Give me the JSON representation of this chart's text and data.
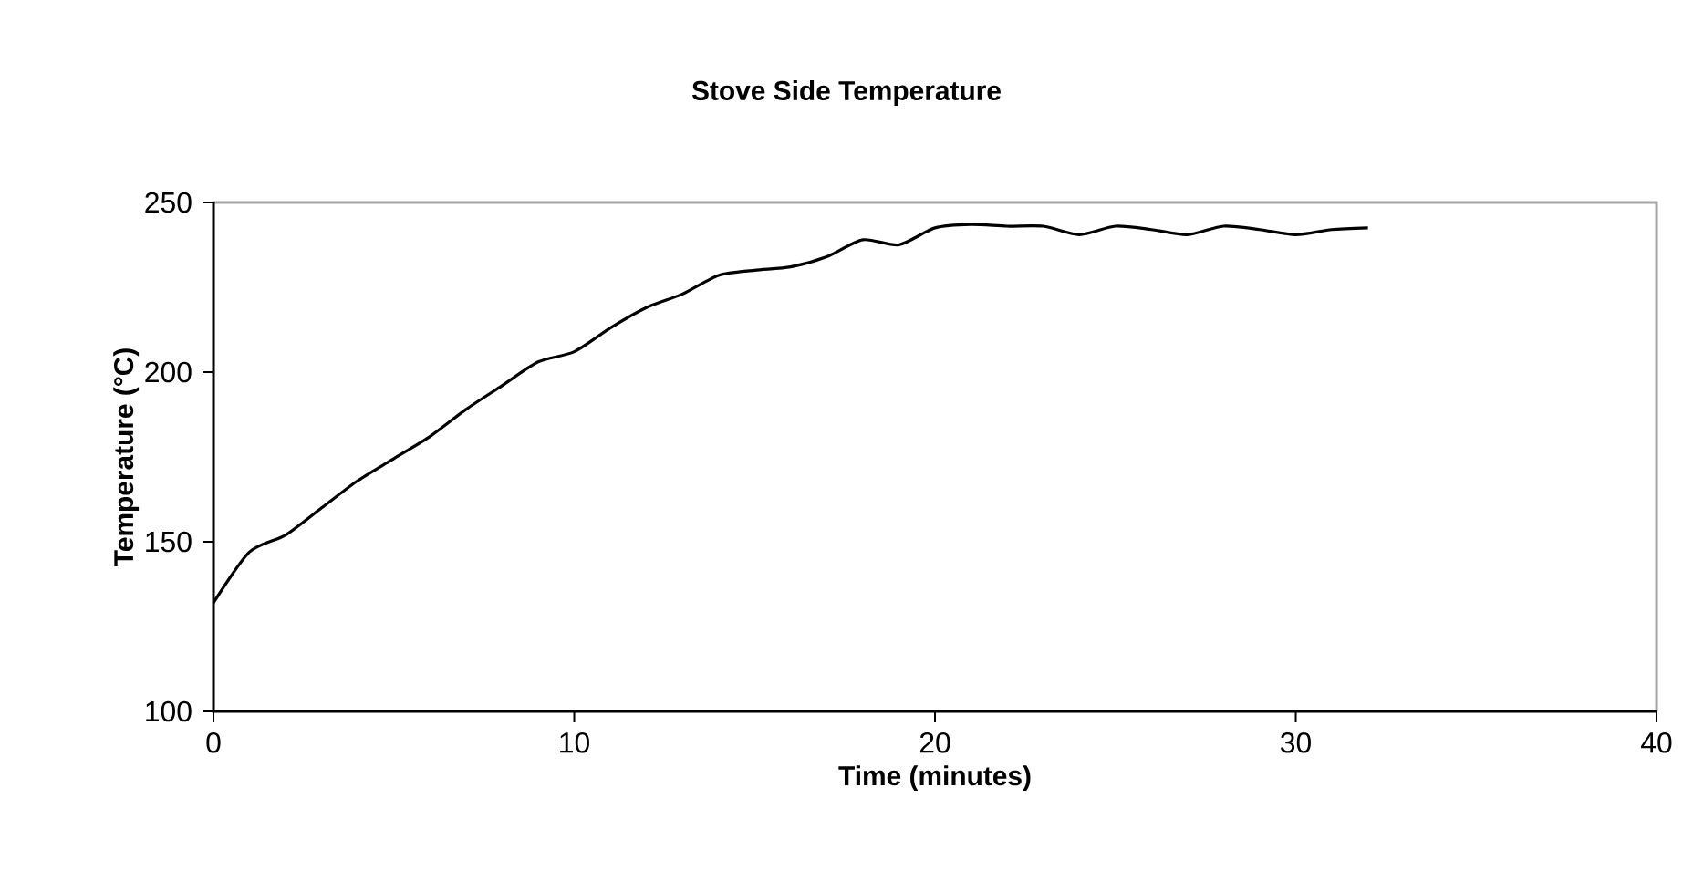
{
  "chart_data": {
    "type": "line",
    "title": "Stove Side Temperature",
    "xlabel": "Time (minutes)",
    "ylabel": "Temperature (°C)",
    "x": [
      0,
      1,
      2,
      3,
      4,
      5,
      6,
      7,
      8,
      9,
      10,
      11,
      12,
      13,
      14,
      15,
      16,
      17,
      18,
      19,
      20,
      21,
      22,
      23,
      24,
      25,
      26,
      27,
      28,
      29,
      30,
      31,
      32
    ],
    "values": [
      132,
      147,
      152,
      160,
      168,
      174.5,
      181,
      189,
      196,
      203,
      206,
      213,
      219,
      223,
      228.5,
      230,
      231,
      234,
      239,
      237.5,
      242.5,
      243.5,
      243,
      243,
      240.5,
      243,
      242,
      240.5,
      243,
      242,
      240.5,
      242,
      242.5
    ],
    "color": "#000000",
    "xlim": [
      0,
      40
    ],
    "ylim": [
      100,
      250
    ],
    "xticks": [
      0,
      10,
      20,
      30,
      40
    ],
    "yticks": [
      100,
      150,
      200,
      250
    ]
  }
}
